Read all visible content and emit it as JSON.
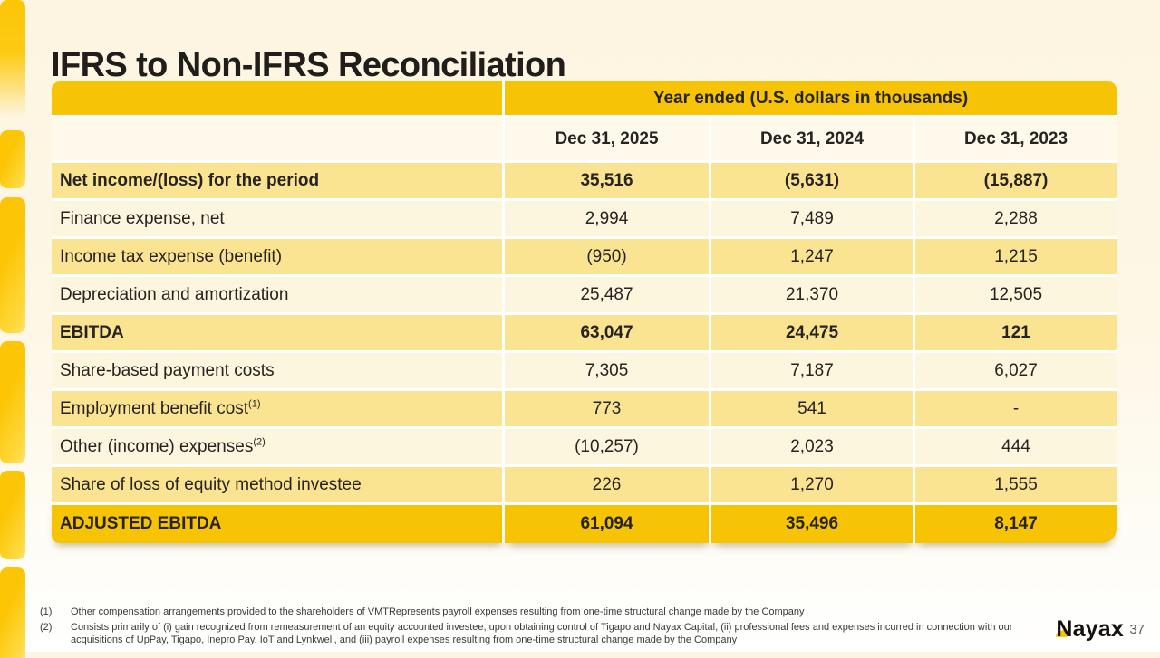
{
  "slide": {
    "title": "IFRS to Non-IFRS Reconciliation",
    "page_number": "37",
    "logo_text": "Nayax"
  },
  "table": {
    "spanner": "Year ended (U.S. dollars in thousands)",
    "columns": [
      "Dec 31, 2025",
      "Dec 31, 2024",
      "Dec 31, 2023"
    ],
    "rows": [
      {
        "label": "Net income/(loss) for the period",
        "sup": "",
        "values": [
          "35,516",
          "(5,631)",
          "(15,887)"
        ],
        "style": "emphasis"
      },
      {
        "label": "Finance expense, net",
        "sup": "",
        "values": [
          "2,994",
          "7,489",
          "2,288"
        ],
        "style": "light"
      },
      {
        "label": "Income tax expense (benefit)",
        "sup": "",
        "values": [
          "(950)",
          "1,247",
          "1,215"
        ],
        "style": "dark"
      },
      {
        "label": "Depreciation and amortization",
        "sup": "",
        "values": [
          "25,487",
          "21,370",
          "12,505"
        ],
        "style": "light"
      },
      {
        "label": "EBITDA",
        "sup": "",
        "values": [
          "63,047",
          "24,475",
          "121"
        ],
        "style": "emphasis"
      },
      {
        "label": "Share-based payment costs",
        "sup": "",
        "values": [
          "7,305",
          "7,187",
          "6,027"
        ],
        "style": "light"
      },
      {
        "label": "Employment benefit cost",
        "sup": "(1)",
        "values": [
          "773",
          "541",
          "-"
        ],
        "style": "dark"
      },
      {
        "label": "Other (income) expenses",
        "sup": "(2)",
        "values": [
          "(10,257)",
          "2,023",
          "444"
        ],
        "style": "light"
      },
      {
        "label": "Share of loss of equity method investee",
        "sup": "",
        "values": [
          "226",
          "1,270",
          "1,555"
        ],
        "style": "dark"
      },
      {
        "label": "ADJUSTED EBITDA",
        "sup": "",
        "values": [
          "61,094",
          "35,496",
          "8,147"
        ],
        "style": "total"
      }
    ]
  },
  "footnotes": [
    {
      "marker": "(1)",
      "text": "Other compensation arrangements provided to the shareholders of VMTRepresents payroll expenses resulting from one-time structural change made by the Company"
    },
    {
      "marker": "(2)",
      "text": "Consists primarily of (i) gain recognized from remeasurement of an equity accounted investee, upon obtaining control of Tigapo and Nayax Capital, (ii) professional fees and expenses incurred in connection with our acquisitions of UpPay, Tigapo, Inepro Pay, IoT and Lynkwell, and (iii) payroll expenses resulting from one-time structural change made by the Company"
    }
  ],
  "colors": {
    "accent_gold": "#F6C405",
    "row_dark_cream": "#FBE491",
    "row_light_cream": "#FDF6DF",
    "date_row_bg": "#FEF9EB",
    "background_top": "#FDF5E1",
    "title_text": "#201D1A",
    "footnote_text": "#3A3A3A",
    "page_number_text": "#595959"
  }
}
